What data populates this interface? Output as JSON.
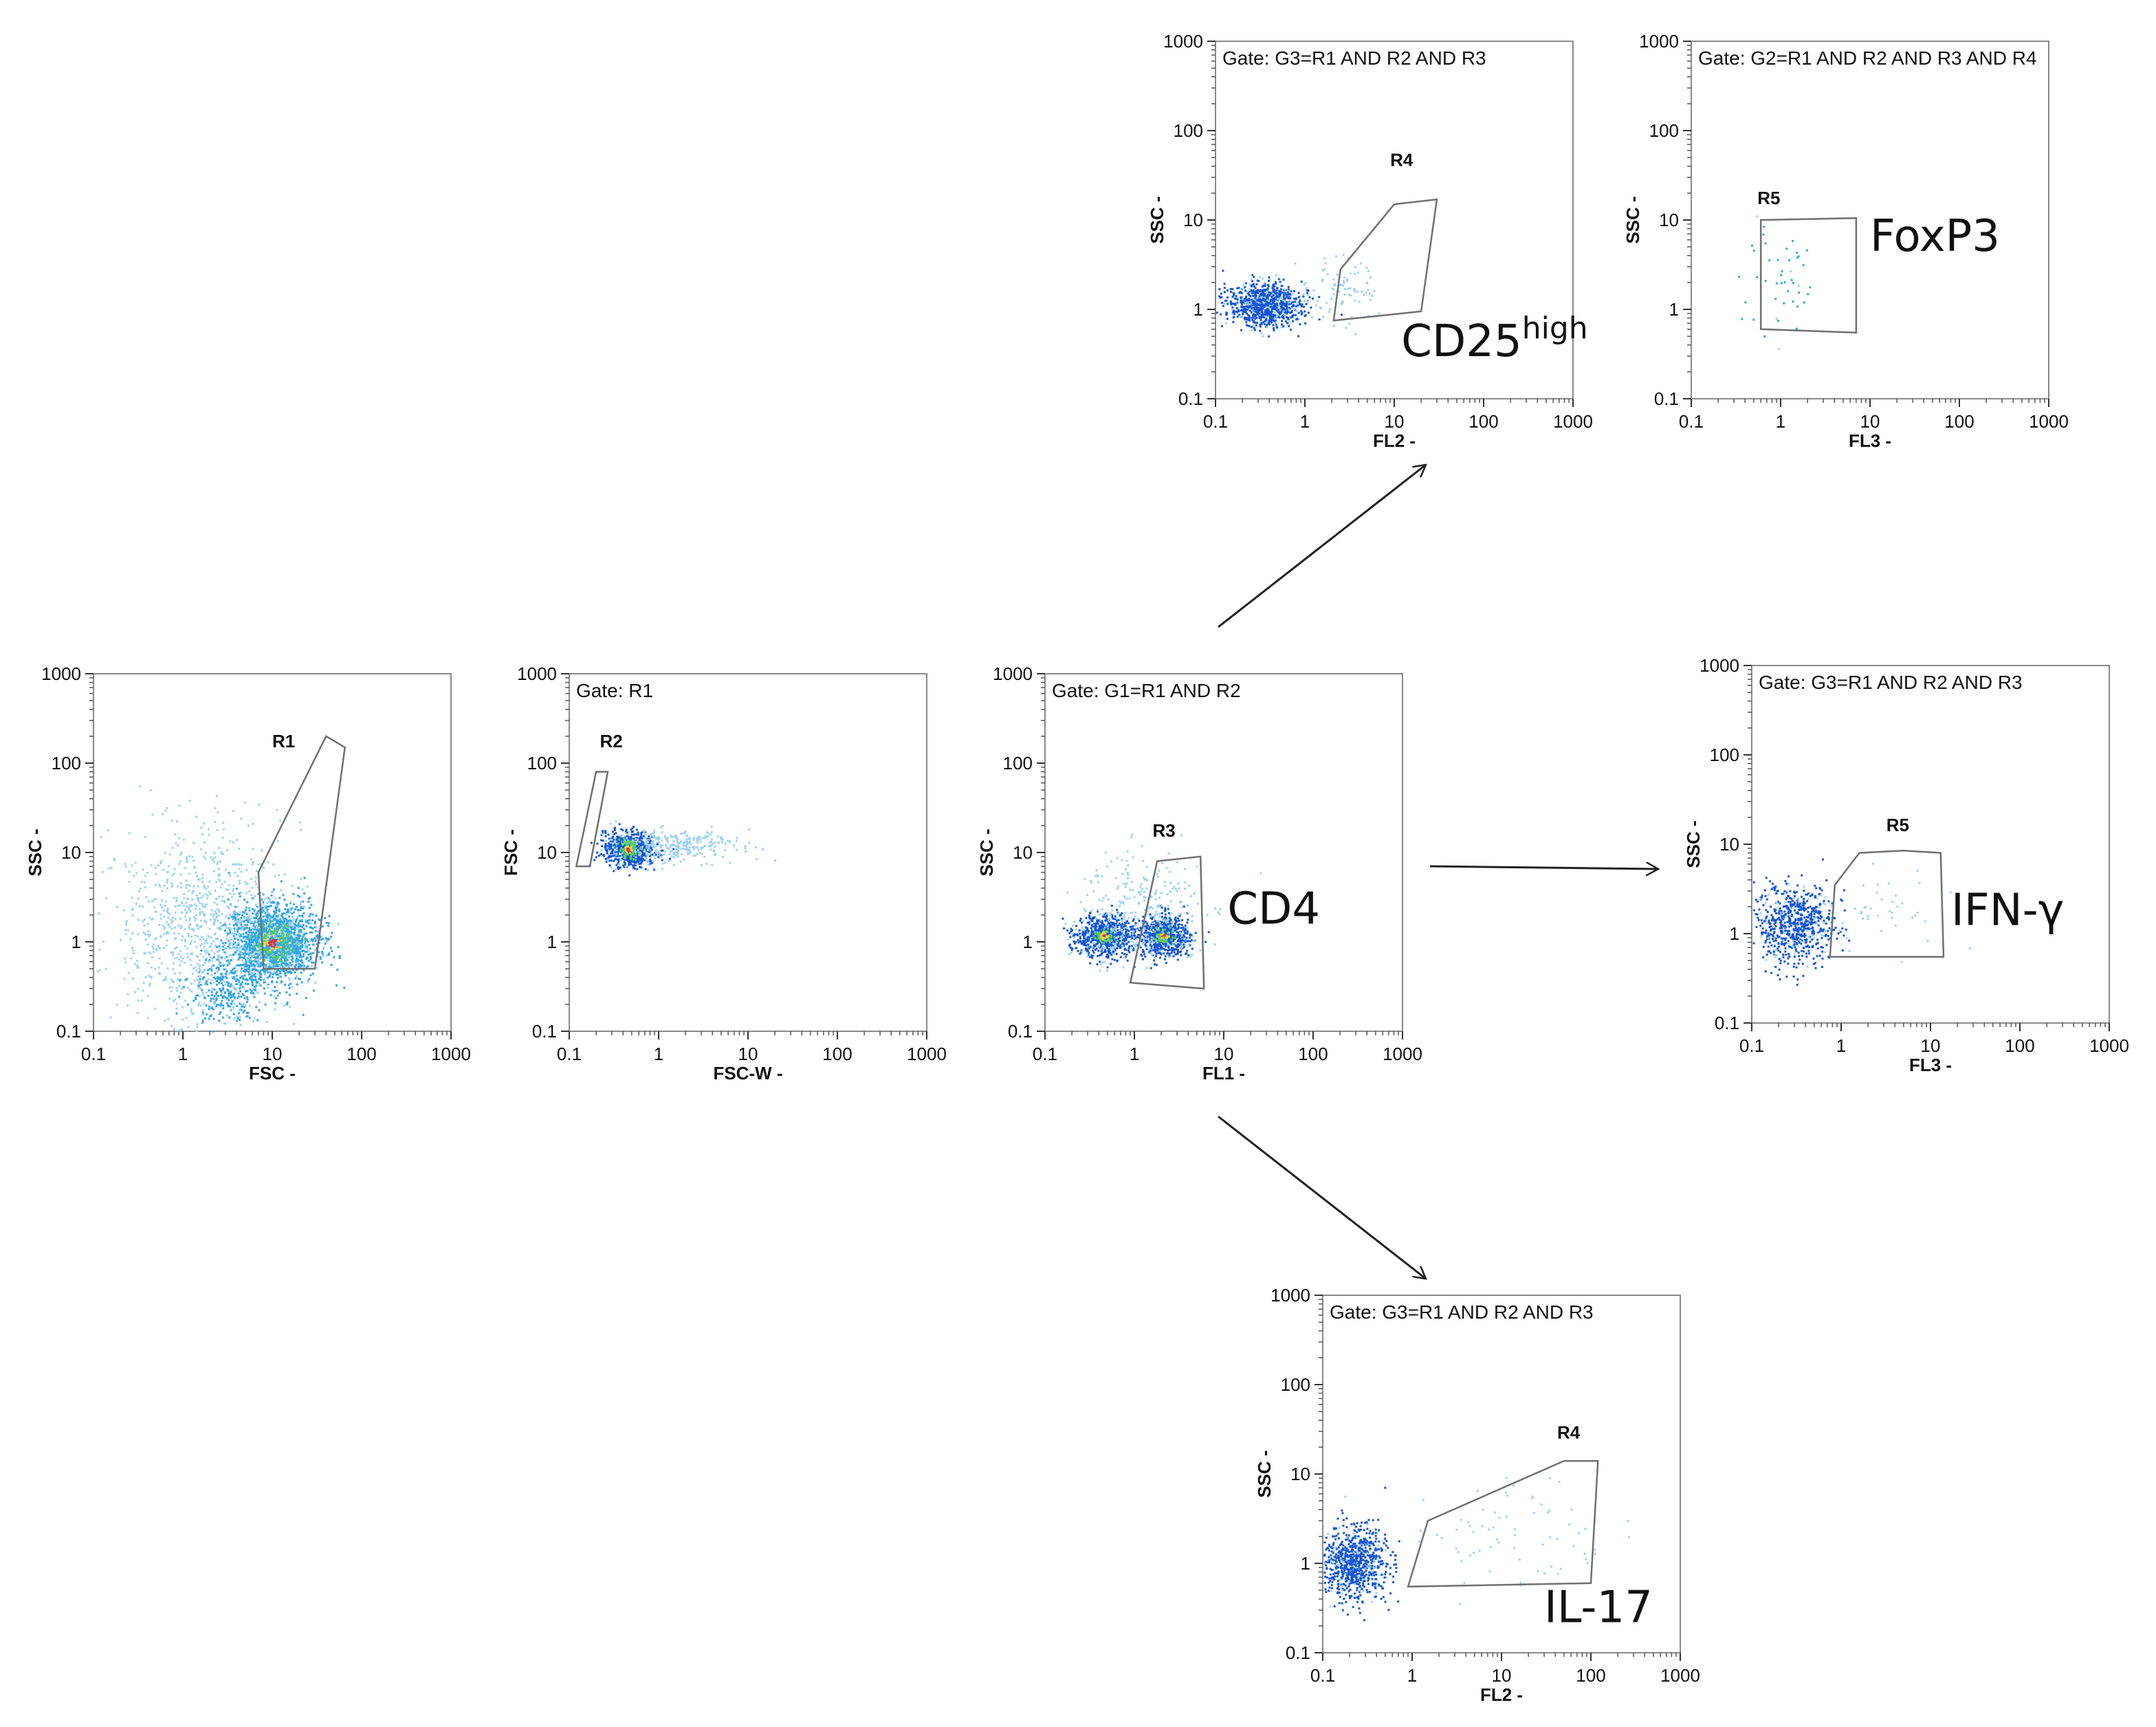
{
  "figure_title": "",
  "colors": {
    "dot_light": "#9fd3f2",
    "dot_mid": "#35a6e8",
    "dot_dark": "#1455d6",
    "hot_green": "#57d15a",
    "hot_yellow": "#f2d23c",
    "hot_red": "#d9384a",
    "gate_line": "#707070",
    "frame": "#8a8a8a"
  },
  "chart_data": [
    {
      "id": "p1",
      "type": "scatter",
      "scale": "log",
      "gate_label": "",
      "xlabel": "FSC  -",
      "ylabel": "SSC  -",
      "xlim": [
        0.1,
        1000
      ],
      "ylim": [
        0.1,
        1000
      ],
      "x_ticks": [
        "0.1",
        "1",
        "10",
        "100",
        "1000"
      ],
      "y_ticks": [
        "0.1",
        "1",
        "10",
        "100",
        "1000"
      ],
      "region": {
        "name": "R1",
        "label_at": [
          10,
          150
        ],
        "polygon": [
          [
            7,
            6
          ],
          [
            40,
            200
          ],
          [
            65,
            150
          ],
          [
            30,
            0.5
          ],
          [
            8,
            0.5
          ]
        ]
      },
      "marker": null,
      "populations": [
        {
          "center": [
            10,
            1.0
          ],
          "spread": [
            0.25,
            0.22
          ],
          "n": 1800,
          "color": "dot_mid"
        },
        {
          "center": [
            1.5,
            1.5
          ],
          "spread": [
            0.45,
            0.55
          ],
          "n": 900,
          "color": "dot_light"
        },
        {
          "center": [
            3,
            0.3
          ],
          "spread": [
            0.2,
            0.2
          ],
          "n": 300,
          "color": "dot_mid"
        },
        {
          "center": [
            10,
            1.0
          ],
          "spread": [
            0.1,
            0.1
          ],
          "n": 140,
          "color": "hot"
        }
      ]
    },
    {
      "id": "p2",
      "type": "scatter",
      "scale": "log",
      "gate_label": "Gate: R1",
      "xlabel": "FSC-W  -",
      "ylabel": "FSC  -",
      "xlim": [
        0.1,
        1000
      ],
      "ylim": [
        0.1,
        1000
      ],
      "x_ticks": [
        "0.1",
        "1",
        "10",
        "100",
        "1000"
      ],
      "y_ticks": [
        "0.1",
        "1",
        "10",
        "100",
        "1000"
      ],
      "region": {
        "name": "R2",
        "label_at": [
          0.22,
          150
        ],
        "polygon": [
          [
            0.12,
            7
          ],
          [
            0.2,
            80
          ],
          [
            0.27,
            80
          ],
          [
            0.17,
            7
          ]
        ]
      },
      "marker": null,
      "populations": [
        {
          "center": [
            0.45,
            11
          ],
          "spread": [
            0.14,
            0.1
          ],
          "n": 700,
          "color": "dot_dark"
        },
        {
          "center": [
            1.5,
            12
          ],
          "spread": [
            0.35,
            0.09
          ],
          "n": 300,
          "color": "dot_light"
        },
        {
          "center": [
            0.45,
            11
          ],
          "spread": [
            0.05,
            0.05
          ],
          "n": 90,
          "color": "hot"
        }
      ]
    },
    {
      "id": "p3",
      "type": "scatter",
      "scale": "log",
      "gate_label": "Gate: G1=R1 AND R2",
      "xlabel": "FL1  -",
      "ylabel": "SSC  -",
      "xlim": [
        0.1,
        1000
      ],
      "ylim": [
        0.1,
        1000
      ],
      "x_ticks": [
        "0.1",
        "1",
        "10",
        "100",
        "1000"
      ],
      "y_ticks": [
        "0.1",
        "1",
        "10",
        "100",
        "1000"
      ],
      "region": {
        "name": "R3",
        "label_at": [
          1.6,
          15
        ],
        "polygon": [
          [
            0.9,
            0.35
          ],
          [
            1.8,
            8
          ],
          [
            5.5,
            9
          ],
          [
            6,
            0.3
          ]
        ]
      },
      "marker": {
        "text": "CD4",
        "sup": "",
        "at": [
          11,
          1.6
        ]
      },
      "populations": [
        {
          "center": [
            0.45,
            1.2
          ],
          "spread": [
            0.18,
            0.12
          ],
          "n": 700,
          "color": "dot_dark"
        },
        {
          "center": [
            2.1,
            1.2
          ],
          "spread": [
            0.14,
            0.12
          ],
          "n": 650,
          "color": "dot_dark"
        },
        {
          "center": [
            1.2,
            2.5
          ],
          "spread": [
            0.35,
            0.3
          ],
          "n": 250,
          "color": "dot_light"
        },
        {
          "center": [
            0.45,
            1.2
          ],
          "spread": [
            0.05,
            0.04
          ],
          "n": 60,
          "color": "hot"
        },
        {
          "center": [
            2.1,
            1.2
          ],
          "spread": [
            0.05,
            0.04
          ],
          "n": 60,
          "color": "hot"
        }
      ]
    },
    {
      "id": "p4",
      "type": "scatter",
      "scale": "log",
      "gate_label": "Gate: G3=R1 AND R2 AND R3",
      "xlabel": "FL2  -",
      "ylabel": "SSC  -",
      "xlim": [
        0.1,
        1000
      ],
      "ylim": [
        0.1,
        1000
      ],
      "x_ticks": [
        "0.1",
        "1",
        "10",
        "100",
        "1000"
      ],
      "y_ticks": [
        "0.1",
        "1",
        "10",
        "100",
        "1000"
      ],
      "region": {
        "name": "R4",
        "label_at": [
          9,
          40
        ],
        "polygon": [
          [
            2.1,
            0.75
          ],
          [
            2.5,
            2.8
          ],
          [
            10,
            15
          ],
          [
            30,
            17
          ],
          [
            20,
            0.95
          ]
        ]
      },
      "marker": {
        "text": "CD25",
        "sup": "high",
        "at": [
          12,
          0.3
        ]
      },
      "populations": [
        {
          "center": [
            0.35,
            1.15
          ],
          "spread": [
            0.2,
            0.12
          ],
          "n": 900,
          "color": "dot_dark"
        },
        {
          "center": [
            2.5,
            1.6
          ],
          "spread": [
            0.2,
            0.2
          ],
          "n": 90,
          "color": "dot_light"
        }
      ]
    },
    {
      "id": "p5",
      "type": "scatter",
      "scale": "log",
      "gate_label": "Gate: G2=R1 AND R2 AND R3 AND R4",
      "xlabel": "FL3  -",
      "ylabel": "SSC  -",
      "xlim": [
        0.1,
        1000
      ],
      "ylim": [
        0.1,
        1000
      ],
      "x_ticks": [
        "0.1",
        "1",
        "10",
        "100",
        "1000"
      ],
      "y_ticks": [
        "0.1",
        "1",
        "10",
        "100",
        "1000"
      ],
      "region": {
        "name": "R5",
        "label_at": [
          0.55,
          15
        ],
        "polygon": [
          [
            0.6,
            0.6
          ],
          [
            0.6,
            10
          ],
          [
            7,
            10.5
          ],
          [
            7,
            0.55
          ]
        ]
      },
      "marker": {
        "text": "FoxP3",
        "sup": "",
        "at": [
          10,
          4.5
        ]
      },
      "populations": [
        {
          "center": [
            1.0,
            2.0
          ],
          "spread": [
            0.22,
            0.3
          ],
          "n": 45,
          "color": "dot_mid"
        }
      ]
    },
    {
      "id": "p6",
      "type": "scatter",
      "scale": "log",
      "gate_label": "Gate: G3=R1 AND R2 AND R3",
      "xlabel": "FL3  -",
      "ylabel": "SSC  -",
      "xlim": [
        0.1,
        1000
      ],
      "ylim": [
        0.1,
        1000
      ],
      "x_ticks": [
        "0.1",
        "1",
        "10",
        "100",
        "1000"
      ],
      "y_ticks": [
        "0.1",
        "1",
        "10",
        "100",
        "1000"
      ],
      "region": {
        "name": "R5",
        "label_at": [
          3.2,
          14
        ],
        "polygon": [
          [
            0.75,
            0.55
          ],
          [
            0.85,
            3.5
          ],
          [
            1.6,
            8
          ],
          [
            5,
            8.5
          ],
          [
            13,
            8
          ],
          [
            14,
            0.55
          ]
        ]
      },
      "marker": {
        "text": "IFN-γ",
        "sup": "",
        "at": [
          17,
          1.25
        ]
      },
      "populations": [
        {
          "center": [
            0.3,
            1.3
          ],
          "spread": [
            0.22,
            0.22
          ],
          "n": 700,
          "color": "dot_dark"
        },
        {
          "center": [
            3.0,
            2.0
          ],
          "spread": [
            0.3,
            0.2
          ],
          "n": 35,
          "color": "dot_light"
        }
      ]
    },
    {
      "id": "p7",
      "type": "scatter",
      "scale": "log",
      "gate_label": "Gate: G3=R1 AND R2 AND R3",
      "xlabel": "FL2  -",
      "ylabel": "SSC  -",
      "xlim": [
        0.1,
        1000
      ],
      "ylim": [
        0.1,
        1000
      ],
      "x_ticks": [
        "0.1",
        "1",
        "10",
        "100",
        "1000"
      ],
      "y_ticks": [
        "0.1",
        "1",
        "10",
        "100",
        "1000"
      ],
      "region": {
        "name": "R4",
        "label_at": [
          42,
          25
        ],
        "polygon": [
          [
            0.9,
            0.55
          ],
          [
            1.5,
            3
          ],
          [
            50,
            14
          ],
          [
            120,
            14
          ],
          [
            100,
            0.6
          ]
        ]
      },
      "marker": {
        "text": "IL-17",
        "sup": "",
        "at": [
          30,
          0.22
        ]
      },
      "populations": [
        {
          "center": [
            0.22,
            1.0
          ],
          "spread": [
            0.18,
            0.2
          ],
          "n": 800,
          "color": "dot_dark"
        },
        {
          "center": [
            15,
            2.0
          ],
          "spread": [
            0.5,
            0.3
          ],
          "n": 70,
          "color": "dot_light"
        }
      ]
    }
  ]
}
